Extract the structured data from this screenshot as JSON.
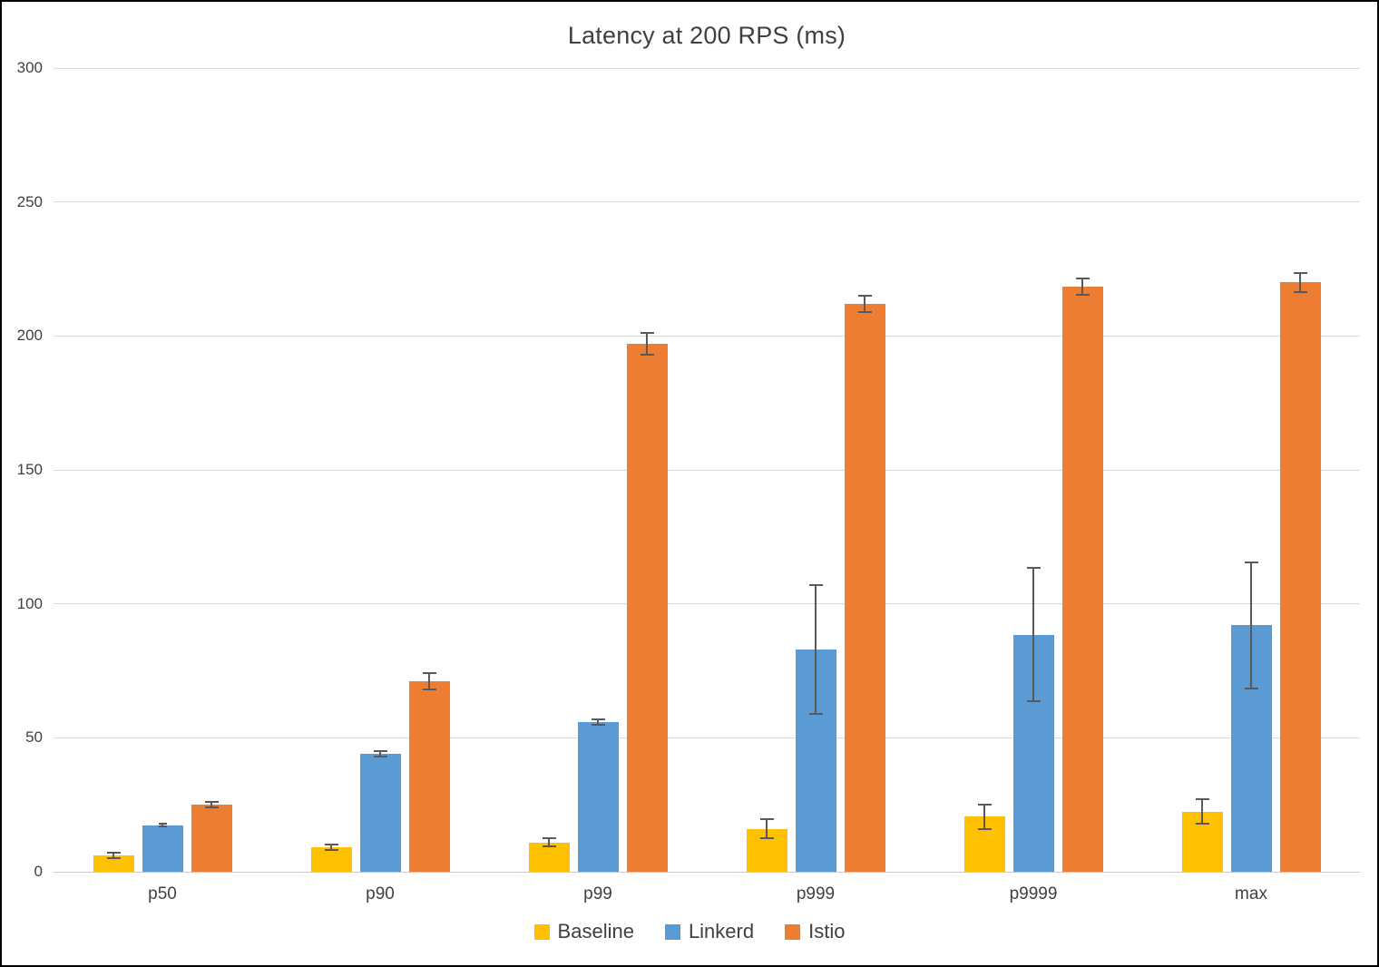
{
  "chart_data": {
    "type": "bar",
    "title": "Latency at 200 RPS (ms)",
    "xlabel": "",
    "ylabel": "",
    "ylim": [
      0,
      300
    ],
    "yticks": [
      0,
      50,
      100,
      150,
      200,
      250,
      300
    ],
    "grid": "horizontal",
    "legend_position": "bottom-center",
    "categories": [
      "p50",
      "p90",
      "p99",
      "p999",
      "p9999",
      "max"
    ],
    "series": [
      {
        "name": "Baseline",
        "color": "#FFC000",
        "values": [
          6,
          9,
          11,
          16,
          20.5,
          22.5
        ],
        "errors": [
          1,
          1,
          1.5,
          3.5,
          4.5,
          4.5
        ]
      },
      {
        "name": "Linkerd",
        "color": "#5B9BD5",
        "values": [
          17.3,
          44,
          56,
          83,
          88.5,
          92
        ],
        "errors": [
          0.5,
          1,
          1,
          24,
          25,
          23.5
        ]
      },
      {
        "name": "Istio",
        "color": "#ED7D31",
        "values": [
          25,
          71,
          197,
          212,
          218.5,
          220
        ],
        "errors": [
          1,
          3,
          4,
          3,
          3,
          3.5
        ]
      }
    ],
    "error_bar_color": "#595959",
    "gridline_color": "#d9d9d9",
    "text_color": "#404040"
  }
}
